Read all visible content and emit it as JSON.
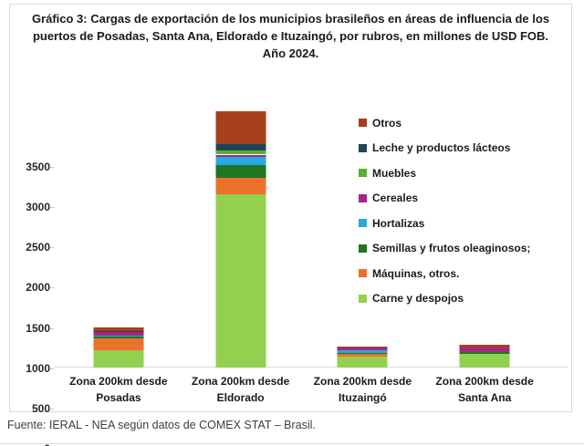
{
  "page": {
    "source": "Fuente: IERAL - NEA según datos de COMEX STAT – Brasil."
  },
  "chart_data": {
    "type": "bar",
    "stacked": true,
    "title": "Gráfico 3: Cargas de exportación de los municipios brasileños en áreas de influencia de los puertos de Posadas, Santa Ana, Eldorado e Ituzaingó, por rubros, en millones de USD FOB. Año 2024.",
    "categories": [
      "Zona 200km desde\nPosadas",
      "Zona 200km desde\nEldorado",
      "Zona 200km desde\nItuzaingó",
      "Zona 200km desde\nSanta Ana"
    ],
    "series": [
      {
        "name": "Carne y despojos",
        "color": "#92D050",
        "values": [
          220,
          2150,
          140,
          165
        ]
      },
      {
        "name": "Máquinas, otros.",
        "color": "#ED7128",
        "values": [
          140,
          210,
          30,
          0
        ]
      },
      {
        "name": "Semillas y frutos oleaginosos;",
        "color": "#1E7524",
        "values": [
          30,
          160,
          15,
          30
        ]
      },
      {
        "name": "Hortalizas",
        "color": "#29A8E0",
        "values": [
          10,
          95,
          30,
          0
        ]
      },
      {
        "name": "Cereales",
        "color": "#A3268E",
        "values": [
          45,
          30,
          40,
          60
        ]
      },
      {
        "name": "Muebles",
        "color": "#5AAE32",
        "values": [
          5,
          50,
          0,
          0
        ]
      },
      {
        "name": "Leche y productos lácteos",
        "color": "#1F4457",
        "values": [
          5,
          80,
          0,
          0
        ]
      },
      {
        "name": "Otros",
        "color": "#A5401A",
        "values": [
          40,
          410,
          10,
          25
        ]
      }
    ],
    "legend_order_top_to_bottom": [
      "Otros",
      "Leche y productos lácteos",
      "Muebles",
      "Cereales",
      "Hortalizas",
      "Semillas y frutos oleaginosos;",
      "Máquinas, otros.",
      "Carne y despojos"
    ],
    "ylabel": "",
    "xlabel": "",
    "ylim": [
      0,
      3500
    ],
    "yticks": [
      0,
      500,
      1000,
      1500,
      2000,
      2500,
      3000,
      3500
    ],
    "grid": false,
    "legend_position": "inside-right"
  }
}
